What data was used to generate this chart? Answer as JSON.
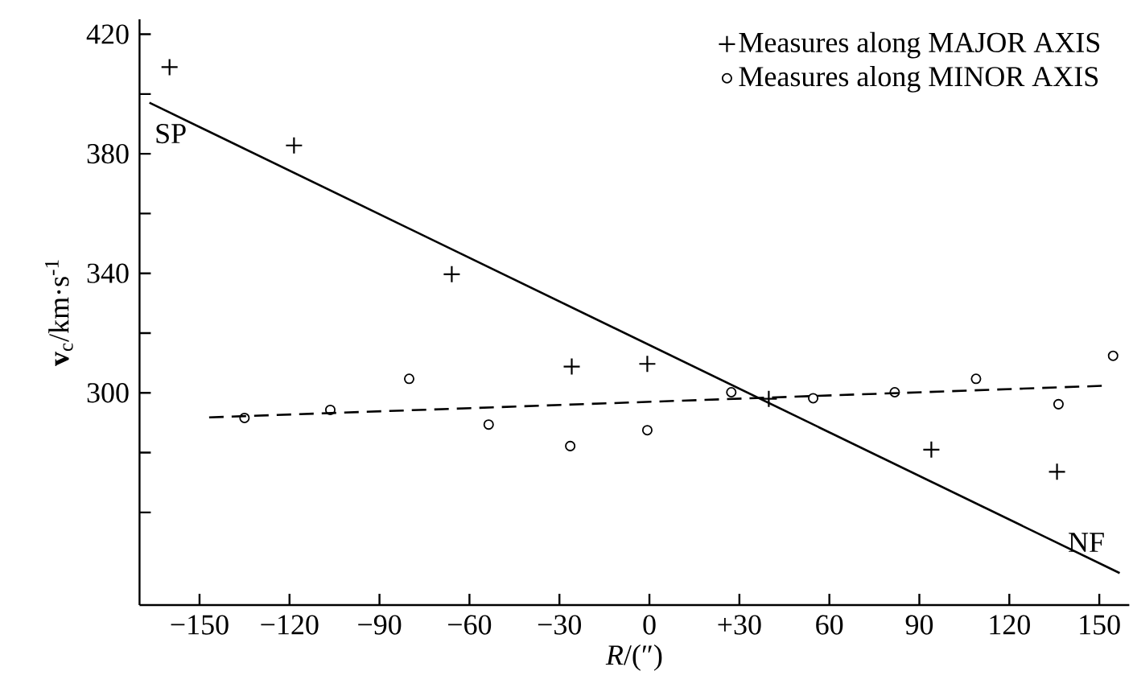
{
  "chart_data": {
    "type": "scatter",
    "xlabel": "*R*/(″)",
    "ylabel": "**v**$_{c}$/km·s$^{-1}$",
    "xlim": [
      -170,
      160
    ],
    "ylim": [
      229,
      425
    ],
    "xticks": [
      {
        "value": -150,
        "label": "−150"
      },
      {
        "value": -120,
        "label": "−120"
      },
      {
        "value": -90,
        "label": "−90"
      },
      {
        "value": -60,
        "label": "−60"
      },
      {
        "value": -30,
        "label": "−30"
      },
      0,
      {
        "value": 30,
        "label": "+30"
      },
      60,
      90,
      120,
      150
    ],
    "yticks": [
      {
        "value": 260,
        "label": null
      },
      {
        "value": 280,
        "label": null
      },
      300,
      {
        "value": 320,
        "label": null
      },
      340,
      {
        "value": 360,
        "label": null
      },
      380,
      {
        "value": 400,
        "label": null
      },
      420
    ],
    "legend": "top right",
    "grid": false,
    "series": [
      {
        "name": "Measures along MAJOR AXIS",
        "marker": "cross",
        "color": "#000000",
        "x": [
          -160,
          -118.5,
          -65.9,
          -25.9,
          -0.7,
          39.8,
          94,
          135.9
        ],
        "values": [
          409,
          382.8,
          339.7,
          308.8,
          309.7,
          298,
          281,
          273.6
        ]
      },
      {
        "name": "Measures along MINOR AXIS",
        "marker": "circle",
        "color": "#000000",
        "x": [
          -135,
          -106.4,
          -80.1,
          -53.6,
          -26.4,
          -0.7,
          27.3,
          54.6,
          81.8,
          108.9,
          136.4,
          154.6
        ],
        "values": [
          291.6,
          294.3,
          304.7,
          289.4,
          282.2,
          287.5,
          300.2,
          298.2,
          300.2,
          304.7,
          296.2,
          312.4
        ]
      },
      {
        "type": "line",
        "line_style": "solid",
        "marker": "none",
        "color": "#000000",
        "x": [
          -166.7,
          156.8
        ],
        "values": [
          397.1,
          239.7
        ]
      },
      {
        "type": "line",
        "line_style": "dashed",
        "marker": "none",
        "color": "#000000",
        "x": [
          -146.8,
          152.3
        ],
        "values": [
          291.8,
          302.4
        ]
      }
    ],
    "annotations": [
      "SP",
      "NF"
    ]
  }
}
